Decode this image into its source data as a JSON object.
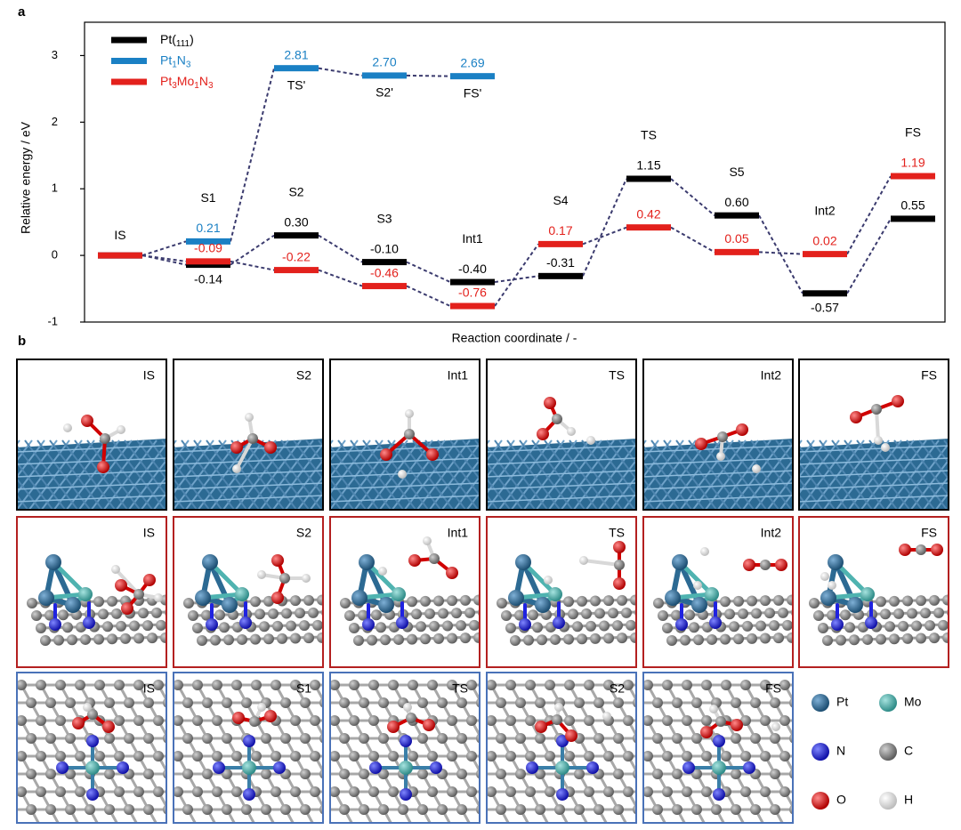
{
  "chart_data": {
    "type": "energy-levels",
    "ylabel": "Relative energy / eV",
    "xlabel": "Reaction coordinate / -",
    "categories": [
      "IS",
      "S1",
      "S2",
      "S3",
      "Int1",
      "S4",
      "TS",
      "S5",
      "Int2",
      "FS"
    ],
    "ylim": [
      -1,
      3.5
    ],
    "yticks": [
      -1,
      0,
      1,
      2,
      3
    ],
    "legend": "top-left",
    "series": [
      {
        "name": "Pt(111)",
        "color": "#000000",
        "values": [
          0,
          -0.14,
          0.3,
          -0.1,
          -0.4,
          -0.31,
          1.15,
          0.6,
          -0.57,
          0.55
        ],
        "value_labels": [
          null,
          "-0.14",
          "0.30",
          "-0.10",
          "-0.40",
          "-0.31",
          "1.15",
          "0.60",
          "-0.57",
          "0.55"
        ]
      },
      {
        "name": "Pt1N3",
        "color": "#1a80c4",
        "values": [
          0,
          0.21,
          2.81,
          2.7,
          2.69,
          null,
          null,
          null,
          null,
          null
        ],
        "value_labels": [
          null,
          "0.21",
          "2.81",
          "2.70",
          "2.69",
          null,
          null,
          null,
          null,
          null
        ],
        "point_labels": [
          null,
          null,
          "TS'",
          "S2'",
          "FS'",
          null,
          null,
          null,
          null,
          null
        ]
      },
      {
        "name": "Pt3Mo1N3",
        "color": "#e3211c",
        "values": [
          0,
          -0.09,
          -0.22,
          -0.46,
          -0.76,
          0.17,
          0.42,
          0.05,
          0.02,
          1.19
        ],
        "value_labels": [
          null,
          "-0.09",
          "-0.22",
          "-0.46",
          "-0.76",
          "0.17",
          "0.42",
          "0.05",
          "0.02",
          "1.19"
        ]
      }
    ]
  },
  "panel_labels": [
    "a",
    "b"
  ],
  "panel_b": {
    "rows": [
      {
        "border": "#000000",
        "frames": [
          "IS",
          "S2",
          "Int1",
          "TS",
          "Int2",
          "FS"
        ]
      },
      {
        "border": "#b42020",
        "frames": [
          "IS",
          "S2",
          "Int1",
          "TS",
          "Int2",
          "FS"
        ]
      },
      {
        "border": "#4a72b8",
        "frames": [
          "IS",
          "S1",
          "TS",
          "S2",
          "FS"
        ]
      }
    ],
    "legend": [
      {
        "name": "Pt",
        "color": "#2c6a93"
      },
      {
        "name": "Mo",
        "color": "#4fb3b0"
      },
      {
        "name": "N",
        "color": "#1f22e0"
      },
      {
        "name": "C",
        "color": "#8a8a8a"
      },
      {
        "name": "O",
        "color": "#e00000"
      },
      {
        "name": "H",
        "color": "#eeeeee"
      }
    ]
  }
}
